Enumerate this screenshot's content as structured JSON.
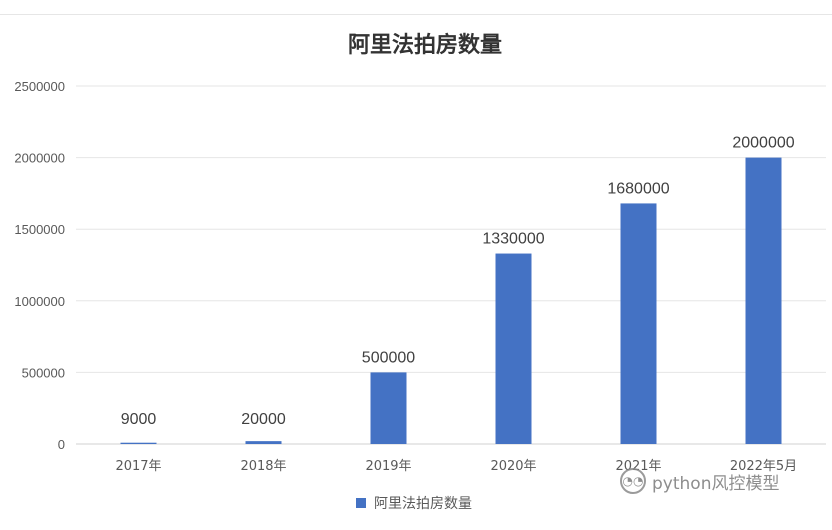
{
  "chart_data": {
    "type": "bar",
    "title": "阿里法拍房数量",
    "categories": [
      "2017年",
      "2018年",
      "2019年",
      "2020年",
      "2021年",
      "2022年5月"
    ],
    "series": [
      {
        "name": "阿里法拍房数量",
        "values": [
          9000,
          20000,
          500000,
          1330000,
          1680000,
          2000000
        ]
      }
    ],
    "data_labels": [
      "9000",
      "20000",
      "500000",
      "1330000",
      "1680000",
      "2000000"
    ],
    "y_ticks": [
      "0",
      "500000",
      "1000000",
      "1500000",
      "2000000",
      "2500000"
    ],
    "ylim": [
      0,
      2500000
    ],
    "xlabel": "",
    "ylabel": "",
    "grid": true,
    "legend": "bottom",
    "colors": {
      "bar": "#4472c4",
      "grid": "#e6e6e6",
      "axis": "#d0d0d0"
    }
  },
  "watermark": {
    "icon": "wechat-icon",
    "text": "python风控模型"
  }
}
